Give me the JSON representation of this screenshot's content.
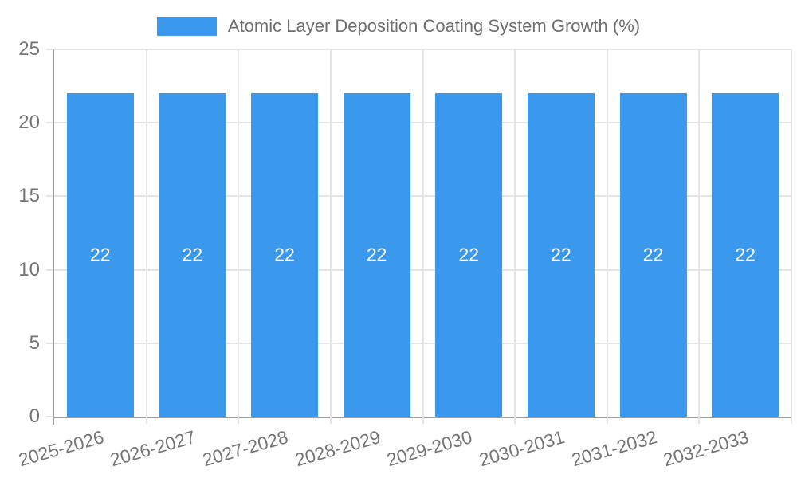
{
  "chart_data": {
    "type": "bar",
    "title": "Atomic Layer Deposition Coating System Growth (%)",
    "legend_label": "Atomic Layer Deposition Coating System Growth (%)",
    "categories": [
      "2025-2026",
      "2026-2027",
      "2027-2028",
      "2028-2029",
      "2029-2030",
      "2030-2031",
      "2031-2032",
      "2032-2033"
    ],
    "values": [
      22,
      22,
      22,
      22,
      22,
      22,
      22,
      22
    ],
    "bar_labels": [
      "22",
      "22",
      "22",
      "22",
      "22",
      "22",
      "22",
      "22"
    ],
    "xlabel": "",
    "ylabel": "",
    "ylim": [
      0,
      25
    ],
    "yticks": [
      0,
      5,
      10,
      15,
      20,
      25
    ],
    "grid": true,
    "legend_position": "top",
    "bar_color": "#3A99EC",
    "bar_label_color": "#FFFFFF",
    "gridline_color": "#E5E5E5",
    "axis_line_color": "#9E9E9E",
    "tick_label_color": "#757575",
    "title_color": "#6E6E6E"
  }
}
